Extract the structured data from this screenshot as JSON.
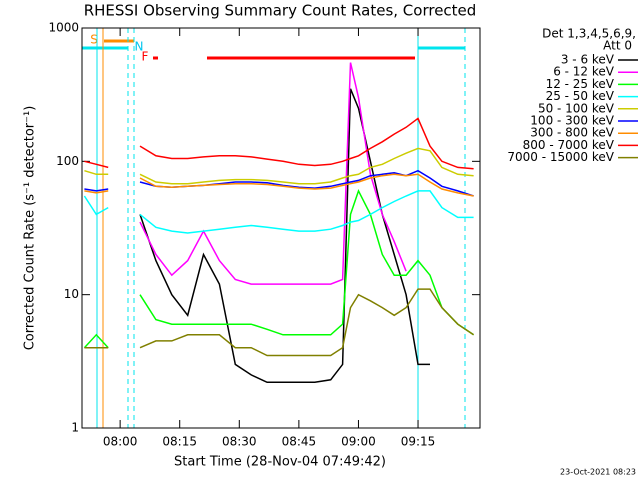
{
  "chart_data": {
    "type": "line",
    "title": "RHESSI Observing Summary Count Rates, Corrected",
    "x_label": "Start Time (28-Nov-04 07:49:42)",
    "y_label": "Corrected Count Rate (s⁻¹ detector⁻¹)",
    "legend_title": [
      "Det 1,3,4,5,6,9,",
      "Att 0"
    ],
    "timestamp": "23-Oct-2021 08:23",
    "annotations": [
      "S",
      "N",
      "F"
    ],
    "log_y": true,
    "legend_position": "right",
    "xlim": [
      470.4,
      570.6
    ],
    "xticks": [
      {
        "value": 480,
        "label": "08:00"
      },
      {
        "value": 495,
        "label": "08:15"
      },
      {
        "value": 510,
        "label": "08:30"
      },
      {
        "value": 525,
        "label": "08:45"
      },
      {
        "value": 540,
        "label": "09:00"
      },
      {
        "value": 555,
        "label": "09:15"
      }
    ],
    "ylim": [
      1,
      1000
    ],
    "yticks": [
      1,
      10,
      100,
      1000
    ],
    "x": [
      471,
      474,
      477,
      479,
      485,
      489,
      493,
      497,
      501,
      505,
      509,
      513,
      517,
      521,
      525,
      529,
      533,
      536,
      538,
      540,
      543,
      546,
      549,
      552,
      555,
      558,
      561,
      565,
      569
    ],
    "series": [
      {
        "name": "3 - 6 keV",
        "color": "#000000",
        "values": [
          null,
          null,
          null,
          null,
          40,
          18,
          10,
          7,
          20,
          12,
          3,
          2.5,
          2.2,
          2.2,
          2.2,
          2.2,
          2.3,
          3,
          350,
          250,
          100,
          40,
          20,
          10,
          3,
          3,
          null,
          null,
          null
        ]
      },
      {
        "name": "6 - 12 keV",
        "color": "#ff00ff",
        "values": [
          null,
          null,
          null,
          null,
          35,
          20,
          14,
          18,
          30,
          18,
          13,
          12,
          12,
          12,
          12,
          12,
          12,
          13,
          550,
          300,
          80,
          40,
          25,
          15,
          null,
          null,
          null,
          null,
          null
        ]
      },
      {
        "name": "12 - 25 keV",
        "color": "#00ff00",
        "values": [
          4,
          5,
          4,
          null,
          10,
          6.5,
          6,
          6,
          6,
          6,
          6,
          6,
          5.5,
          5,
          5,
          5,
          5,
          6,
          40,
          60,
          40,
          20,
          14,
          14,
          18,
          14,
          8,
          6,
          5
        ]
      },
      {
        "name": "25 - 50 keV",
        "color": "#00ffff",
        "values": [
          55,
          40,
          45,
          null,
          40,
          32,
          30,
          29,
          30,
          31,
          32,
          33,
          32,
          31,
          30,
          30,
          31,
          33,
          35,
          36,
          40,
          45,
          50,
          55,
          60,
          60,
          45,
          38,
          38
        ]
      },
      {
        "name": "50 - 100 keV",
        "color": "#cccc00",
        "values": [
          85,
          80,
          80,
          null,
          80,
          70,
          68,
          68,
          70,
          72,
          73,
          73,
          72,
          70,
          68,
          68,
          70,
          75,
          78,
          80,
          90,
          95,
          105,
          115,
          125,
          120,
          90,
          80,
          78
        ]
      },
      {
        "name": "100 - 300 keV",
        "color": "#0000ff",
        "values": [
          62,
          60,
          62,
          null,
          70,
          65,
          64,
          65,
          66,
          68,
          70,
          70,
          69,
          66,
          64,
          63,
          65,
          68,
          70,
          72,
          78,
          80,
          82,
          78,
          85,
          75,
          65,
          60,
          55
        ]
      },
      {
        "name": "300 - 800 keV",
        "color": "#ff8c00",
        "values": [
          60,
          58,
          60,
          null,
          75,
          65,
          64,
          65,
          66,
          67,
          68,
          68,
          67,
          65,
          63,
          62,
          63,
          66,
          68,
          70,
          75,
          78,
          80,
          78,
          80,
          70,
          62,
          58,
          55
        ]
      },
      {
        "name": "800 - 7000 keV",
        "color": "#ff0000",
        "values": [
          100,
          95,
          90,
          null,
          130,
          110,
          105,
          105,
          108,
          110,
          110,
          108,
          104,
          100,
          95,
          93,
          95,
          100,
          105,
          110,
          125,
          140,
          160,
          180,
          210,
          130,
          100,
          90,
          88
        ]
      },
      {
        "name": "7000 - 15000 keV",
        "color": "#808000",
        "values": [
          4,
          4,
          4,
          null,
          4,
          4.5,
          4.5,
          5,
          5,
          5,
          4,
          4,
          3.5,
          3.5,
          3.5,
          3.5,
          3.5,
          4,
          8,
          10,
          9,
          8,
          7,
          8,
          11,
          11,
          8,
          6,
          5
        ]
      }
    ]
  }
}
